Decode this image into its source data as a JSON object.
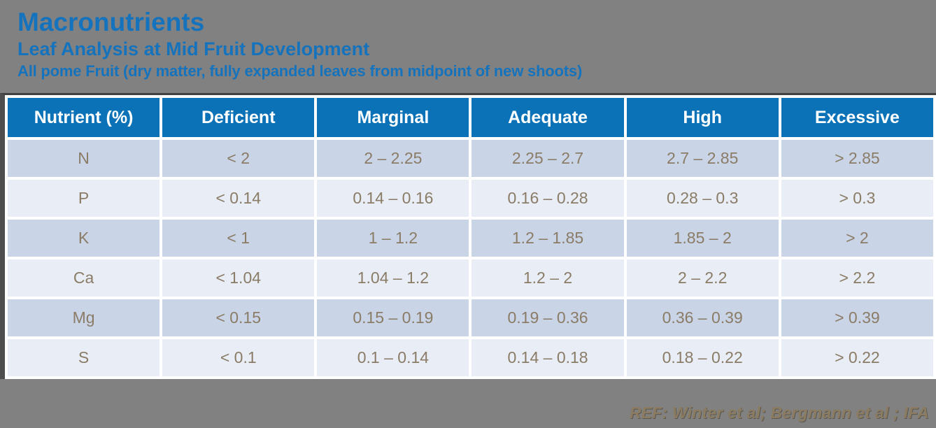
{
  "slide": {
    "title": "Macronutrients",
    "subtitle": "Leaf Analysis at Mid Fruit Development",
    "subsubtitle": "All pome Fruit (dry matter, fully expanded leaves from midpoint of new shoots)",
    "footer": "REF: Winter et al; Bergmann et al ; IFA"
  },
  "colors": {
    "background": "#818181",
    "title_blue": "#1573BD",
    "header_blue": "#0C72B8",
    "row_dark": "#CAD4E7",
    "row_light": "#E9EDF6",
    "cell_text": "#8A7C66",
    "footer_text": "#8B7B60"
  },
  "chart_data": {
    "type": "table",
    "title": "Macronutrients — Leaf Analysis at Mid Fruit Development",
    "columns": [
      "Nutrient (%)",
      "Deficient",
      "Marginal",
      "Adequate",
      "High",
      "Excessive"
    ],
    "rows": [
      [
        "N",
        "< 2",
        "2 – 2.25",
        "2.25 – 2.7",
        "2.7 – 2.85",
        "> 2.85"
      ],
      [
        "P",
        "< 0.14",
        "0.14 – 0.16",
        "0.16 – 0.28",
        "0.28 – 0.3",
        "> 0.3"
      ],
      [
        "K",
        "< 1",
        "1 – 1.2",
        "1.2 – 1.85",
        "1.85 – 2",
        "> 2"
      ],
      [
        "Ca",
        "< 1.04",
        "1.04 – 1.2",
        "1.2 – 2",
        "2 – 2.2",
        "> 2.2"
      ],
      [
        "Mg",
        "< 0.15",
        "0.15 – 0.19",
        "0.19 – 0.36",
        "0.36 – 0.39",
        "> 0.39"
      ],
      [
        "S",
        "< 0.1",
        "0.1 – 0.14",
        "0.14 – 0.18",
        "0.18 – 0.22",
        "> 0.22"
      ]
    ]
  }
}
